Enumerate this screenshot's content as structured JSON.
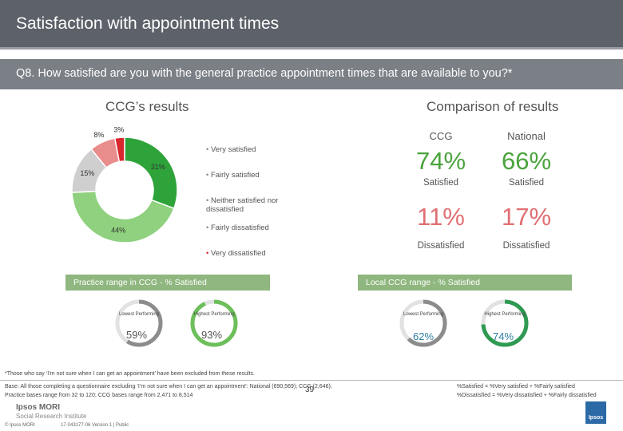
{
  "title": "Satisfaction with appointment times",
  "question": "Q8. How satisfied are you with the general practice appointment times that are available to you?*",
  "left_heading": "CCG’s results",
  "right_heading": "Comparison of results",
  "chart_data": {
    "type": "pie",
    "style": "donut",
    "categories": [
      "Very satisfied",
      "Fairly satisfied",
      "Neither satisfied nor dissatisfied",
      "Fairly dissatisfied",
      "Very dissatisfied"
    ],
    "values": [
      31,
      44,
      15,
      8,
      3
    ],
    "labels": [
      "31%",
      "44%",
      "15%",
      "8%",
      "3%"
    ],
    "colors": [
      "#2ea33a",
      "#8fd17e",
      "#cfcfcf",
      "#e98c8c",
      "#d9272e"
    ],
    "legend": [
      "Very satisfied",
      "Fairly satisfied",
      "Neither satisfied nor dissatisfied",
      "Fairly dissatisfied",
      "Very dissatisfied"
    ]
  },
  "comparison": {
    "col_ccg": "CCG",
    "col_national": "National",
    "satisfied_ccg": "74%",
    "satisfied_national": "66%",
    "satisfied_label": "Satisfied",
    "dissatisfied_ccg": "11%",
    "dissatisfied_national": "17%",
    "dissatisfied_label": "Dissatisfied"
  },
  "practice_range": {
    "label": "Practice range in CCG - % Satisfied",
    "lowest_label": "Lowest Performing",
    "highest_label": "Highest Performing",
    "lowest_value": "59%",
    "highest_value": "93%",
    "lowest_frac": 0.59,
    "highest_frac": 0.93
  },
  "ccg_range": {
    "label": "Local CCG range - % Satisfied",
    "lowest_label": "Lowest Performing",
    "highest_label": "Highest Performing",
    "lowest_value": "62%",
    "highest_value": "74%",
    "lowest_frac": 0.62,
    "highest_frac": 0.74
  },
  "footnote": "*Those who say ‘I’m not sure when I can get an appointment’ have been excluded from these results.",
  "base_line1": "Base: All those completing a questionnaire excluding ‘I’m not sure when I can get an appointment’: National (690,569); CCG (2,646);",
  "base_line2": "Practice bases range from 32 to 120; CCG bases range from 2,471 to 8,514",
  "def_line1": "%Satisfied = %Very satisfied + %Fairly satisfied",
  "def_line2": "%Dissatisfied = %Very dissatisfied + %Fairly dissatisfied",
  "page_number": "39",
  "logo_line1": "Ipsos MORI",
  "logo_line2": "Social Research Institute",
  "copyright": "© Ipsos MORI",
  "version": "17-043177-06 Version 1 | Public",
  "corner_logo": "Ipsos"
}
